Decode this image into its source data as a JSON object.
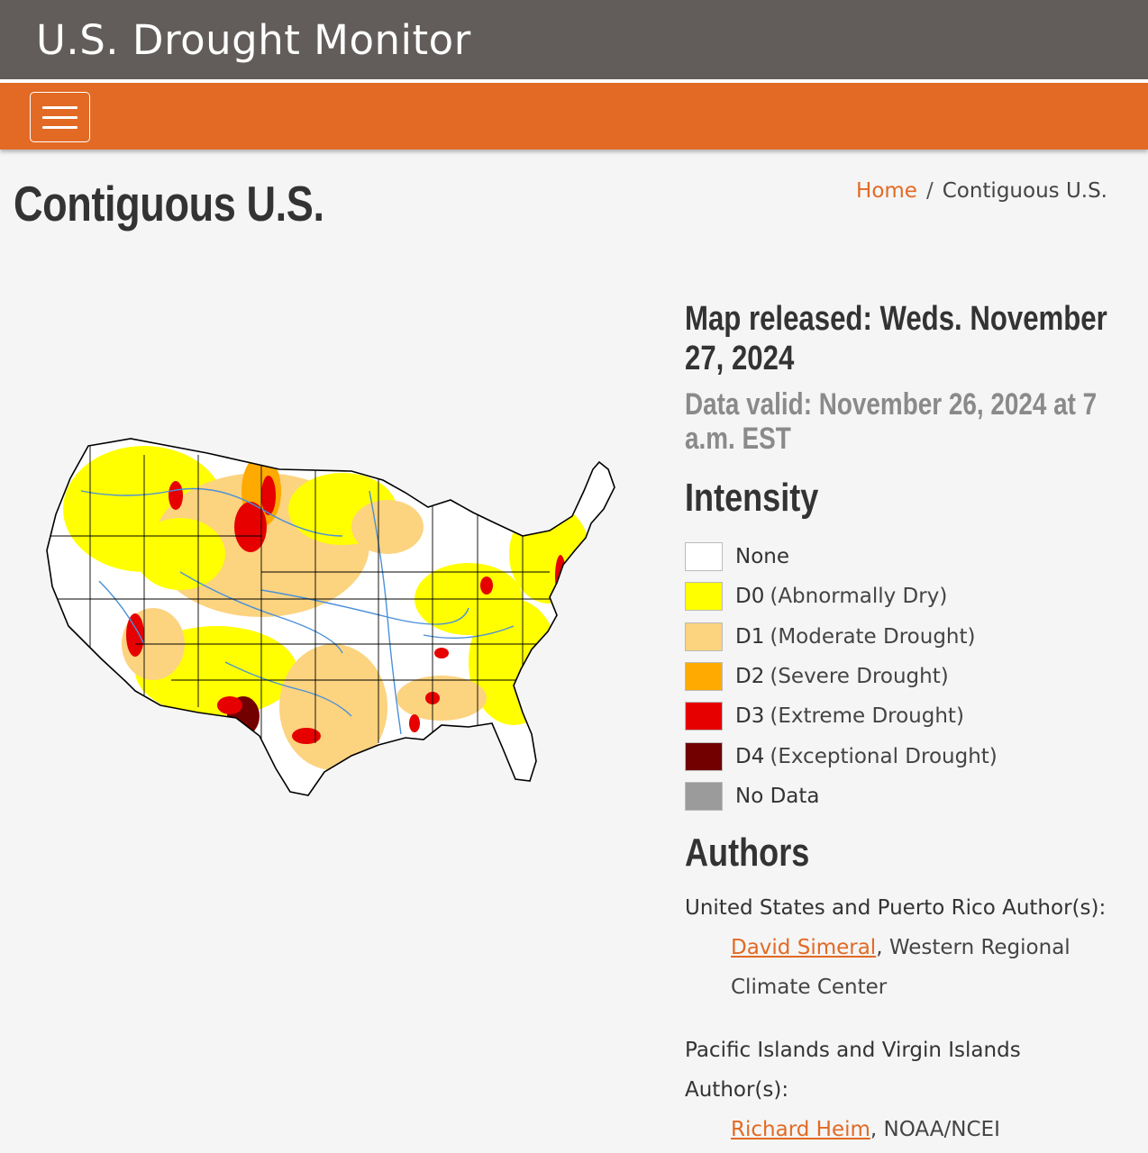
{
  "header": {
    "site_title": "U.S. Drought Monitor"
  },
  "page": {
    "title": "Contiguous U.S."
  },
  "breadcrumb": {
    "home": "Home",
    "separator": "/",
    "current": "Contiguous U.S."
  },
  "release": {
    "released": "Map released: Weds. November 27, 2024",
    "valid": "Data valid: November 26, 2024 at 7 a.m. EST"
  },
  "intensity": {
    "heading": "Intensity",
    "items": [
      {
        "code": "None",
        "desc": "",
        "color": "#ffffff"
      },
      {
        "code": "D0",
        "desc": "(Abnormally Dry)",
        "color": "#ffff00"
      },
      {
        "code": "D1",
        "desc": "(Moderate Drought)",
        "color": "#fcd37f"
      },
      {
        "code": "D2",
        "desc": "(Severe Drought)",
        "color": "#ffaa00"
      },
      {
        "code": "D3",
        "desc": "(Extreme Drought)",
        "color": "#e60000"
      },
      {
        "code": "D4",
        "desc": "(Exceptional Drought)",
        "color": "#730000"
      },
      {
        "code": "No Data",
        "desc": "",
        "color": "#9b9b9b"
      }
    ]
  },
  "authors": {
    "heading": "Authors",
    "groups": [
      {
        "label": "United States and Puerto Rico Author(s):",
        "name": "David Simeral",
        "affiliation": ", Western Regional Climate Center"
      },
      {
        "label": "Pacific Islands and Virgin Islands Author(s):",
        "name": "Richard Heim",
        "affiliation": ", NOAA/NCEI"
      }
    ]
  },
  "colors": {
    "header_bg": "#625d5a",
    "nav_bg": "#e26a24",
    "accent": "#e26a24",
    "river": "#4a90d9"
  }
}
